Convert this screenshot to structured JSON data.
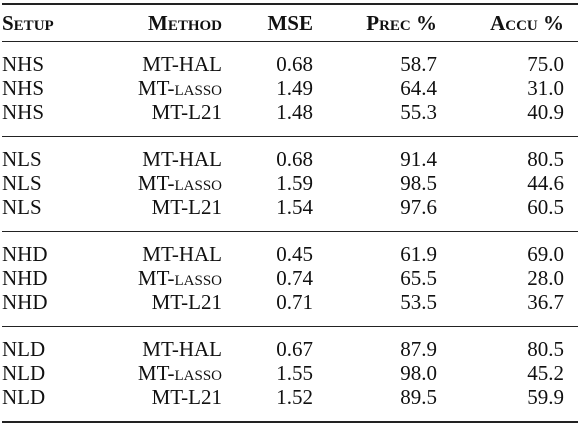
{
  "table": {
    "header": [
      "Setup",
      "Method",
      "MSE",
      "Prec %",
      "Accu %"
    ],
    "groups": [
      [
        [
          "NHS",
          "MT-HAL",
          "0.68",
          "58.7",
          "75.0"
        ],
        [
          "NHS",
          "MT-lasso",
          "1.49",
          "64.4",
          "31.0"
        ],
        [
          "NHS",
          "MT-L21",
          "1.48",
          "55.3",
          "40.9"
        ]
      ],
      [
        [
          "NLS",
          "MT-HAL",
          "0.68",
          "91.4",
          "80.5"
        ],
        [
          "NLS",
          "MT-lasso",
          "1.59",
          "98.5",
          "44.6"
        ],
        [
          "NLS",
          "MT-L21",
          "1.54",
          "97.6",
          "60.5"
        ]
      ],
      [
        [
          "NHD",
          "MT-HAL",
          "0.45",
          "61.9",
          "69.0"
        ],
        [
          "NHD",
          "MT-lasso",
          "0.74",
          "65.5",
          "28.0"
        ],
        [
          "NHD",
          "MT-L21",
          "0.71",
          "53.5",
          "36.7"
        ]
      ],
      [
        [
          "NLD",
          "MT-HAL",
          "0.67",
          "87.9",
          "80.5"
        ],
        [
          "NLD",
          "MT-lasso",
          "1.55",
          "98.0",
          "45.2"
        ],
        [
          "NLD",
          "MT-L21",
          "1.52",
          "89.5",
          "59.9"
        ]
      ]
    ]
  }
}
